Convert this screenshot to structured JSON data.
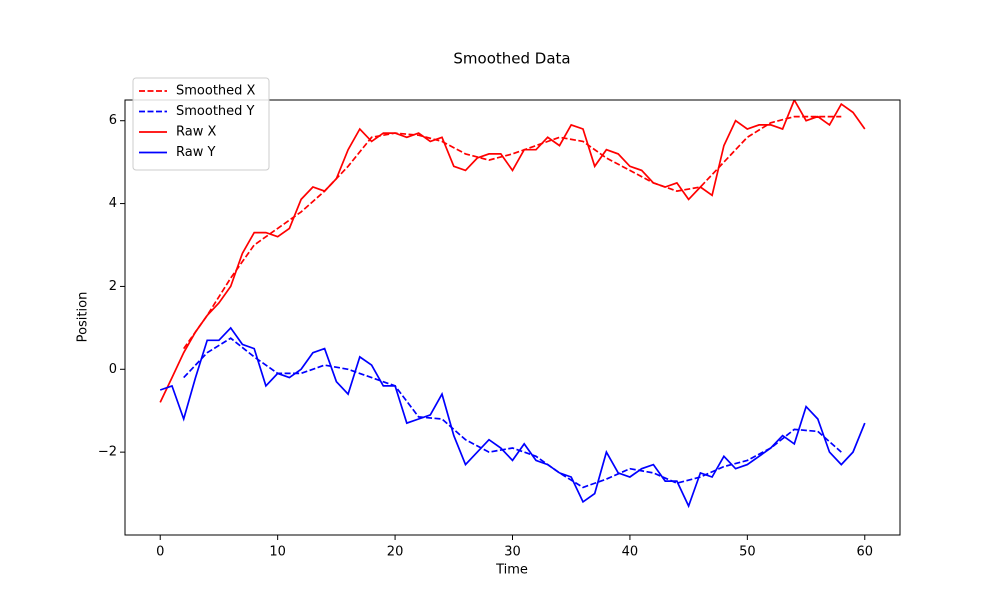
{
  "chart_data": {
    "type": "line",
    "title": "Smoothed Data",
    "x_label": "Time",
    "y_label": "Position",
    "xlim": [
      -3,
      63
    ],
    "ylim": [
      -4.0,
      6.5
    ],
    "xticks": [
      0,
      10,
      20,
      30,
      40,
      50,
      60
    ],
    "yticks": [
      {
        "value": -2,
        "label": "−2"
      },
      0,
      2,
      4,
      6
    ],
    "legend": "upper left",
    "series": [
      {
        "name": "Smoothed X",
        "color": "#ff0000",
        "linestyle": "dashed",
        "x": [
          2,
          4,
          6,
          8,
          10,
          12,
          14,
          16,
          18,
          20,
          22,
          24,
          26,
          28,
          30,
          32,
          34,
          36,
          38,
          40,
          42,
          44,
          46,
          48,
          50,
          52,
          54,
          56,
          58
        ],
        "values": [
          0.5,
          1.3,
          2.2,
          3.0,
          3.4,
          3.8,
          4.3,
          4.9,
          5.6,
          5.7,
          5.65,
          5.5,
          5.2,
          5.05,
          5.2,
          5.4,
          5.6,
          5.5,
          5.1,
          4.8,
          4.5,
          4.3,
          4.4,
          5.0,
          5.6,
          5.95,
          6.1,
          6.1,
          6.1
        ]
      },
      {
        "name": "Smoothed Y",
        "color": "#0000ff",
        "linestyle": "dashed",
        "x": [
          2,
          4,
          6,
          8,
          10,
          12,
          14,
          16,
          18,
          20,
          22,
          24,
          26,
          28,
          30,
          32,
          34,
          36,
          38,
          40,
          42,
          44,
          46,
          48,
          50,
          52,
          54,
          56,
          58
        ],
        "values": [
          -0.2,
          0.4,
          0.75,
          0.3,
          -0.1,
          -0.1,
          0.1,
          0.0,
          -0.2,
          -0.4,
          -1.15,
          -1.2,
          -1.7,
          -2.0,
          -1.9,
          -2.1,
          -2.5,
          -2.85,
          -2.65,
          -2.4,
          -2.5,
          -2.75,
          -2.6,
          -2.35,
          -2.2,
          -1.9,
          -1.45,
          -1.5,
          -2.0
        ]
      },
      {
        "name": "Raw X",
        "color": "#ff0000",
        "linestyle": "solid",
        "x": [
          0,
          1,
          2,
          3,
          4,
          5,
          6,
          7,
          8,
          9,
          10,
          11,
          12,
          13,
          14,
          15,
          16,
          17,
          18,
          19,
          20,
          21,
          22,
          23,
          24,
          25,
          26,
          27,
          28,
          29,
          30,
          31,
          32,
          33,
          34,
          35,
          36,
          37,
          38,
          39,
          40,
          41,
          42,
          43,
          44,
          45,
          46,
          47,
          48,
          49,
          50,
          51,
          52,
          53,
          54,
          55,
          56,
          57,
          58,
          59,
          60
        ],
        "values": [
          -0.8,
          -0.2,
          0.4,
          0.9,
          1.3,
          1.6,
          2.0,
          2.8,
          3.3,
          3.3,
          3.2,
          3.4,
          4.1,
          4.4,
          4.3,
          4.6,
          5.3,
          5.8,
          5.5,
          5.7,
          5.7,
          5.6,
          5.7,
          5.5,
          5.6,
          4.9,
          4.8,
          5.1,
          5.2,
          5.2,
          4.8,
          5.3,
          5.3,
          5.6,
          5.4,
          5.9,
          5.8,
          4.9,
          5.3,
          5.2,
          4.9,
          4.8,
          4.5,
          4.4,
          4.5,
          4.1,
          4.4,
          4.2,
          5.4,
          6.0,
          5.8,
          5.9,
          5.9,
          5.8,
          6.5,
          6.0,
          6.1,
          5.9,
          6.4,
          6.2,
          5.8
        ]
      },
      {
        "name": "Raw Y",
        "color": "#0000ff",
        "linestyle": "solid",
        "x": [
          0,
          1,
          2,
          3,
          4,
          5,
          6,
          7,
          8,
          9,
          10,
          11,
          12,
          13,
          14,
          15,
          16,
          17,
          18,
          19,
          20,
          21,
          22,
          23,
          24,
          25,
          26,
          27,
          28,
          29,
          30,
          31,
          32,
          33,
          34,
          35,
          36,
          37,
          38,
          39,
          40,
          41,
          42,
          43,
          44,
          45,
          46,
          47,
          48,
          49,
          50,
          51,
          52,
          53,
          54,
          55,
          56,
          57,
          58,
          59,
          60
        ],
        "values": [
          -0.5,
          -0.4,
          -1.2,
          -0.2,
          0.7,
          0.7,
          1.0,
          0.6,
          0.5,
          -0.4,
          -0.1,
          -0.2,
          0.0,
          0.4,
          0.5,
          -0.3,
          -0.6,
          0.3,
          0.1,
          -0.4,
          -0.4,
          -1.3,
          -1.2,
          -1.1,
          -0.6,
          -1.6,
          -2.3,
          -2.0,
          -1.7,
          -1.9,
          -2.2,
          -1.8,
          -2.2,
          -2.3,
          -2.5,
          -2.6,
          -3.2,
          -3.0,
          -2.0,
          -2.5,
          -2.6,
          -2.4,
          -2.3,
          -2.7,
          -2.7,
          -3.3,
          -2.5,
          -2.6,
          -2.1,
          -2.4,
          -2.3,
          -2.1,
          -1.9,
          -1.6,
          -1.8,
          -0.9,
          -1.2,
          -2.0,
          -2.3,
          -2.0,
          -1.3
        ]
      }
    ]
  }
}
